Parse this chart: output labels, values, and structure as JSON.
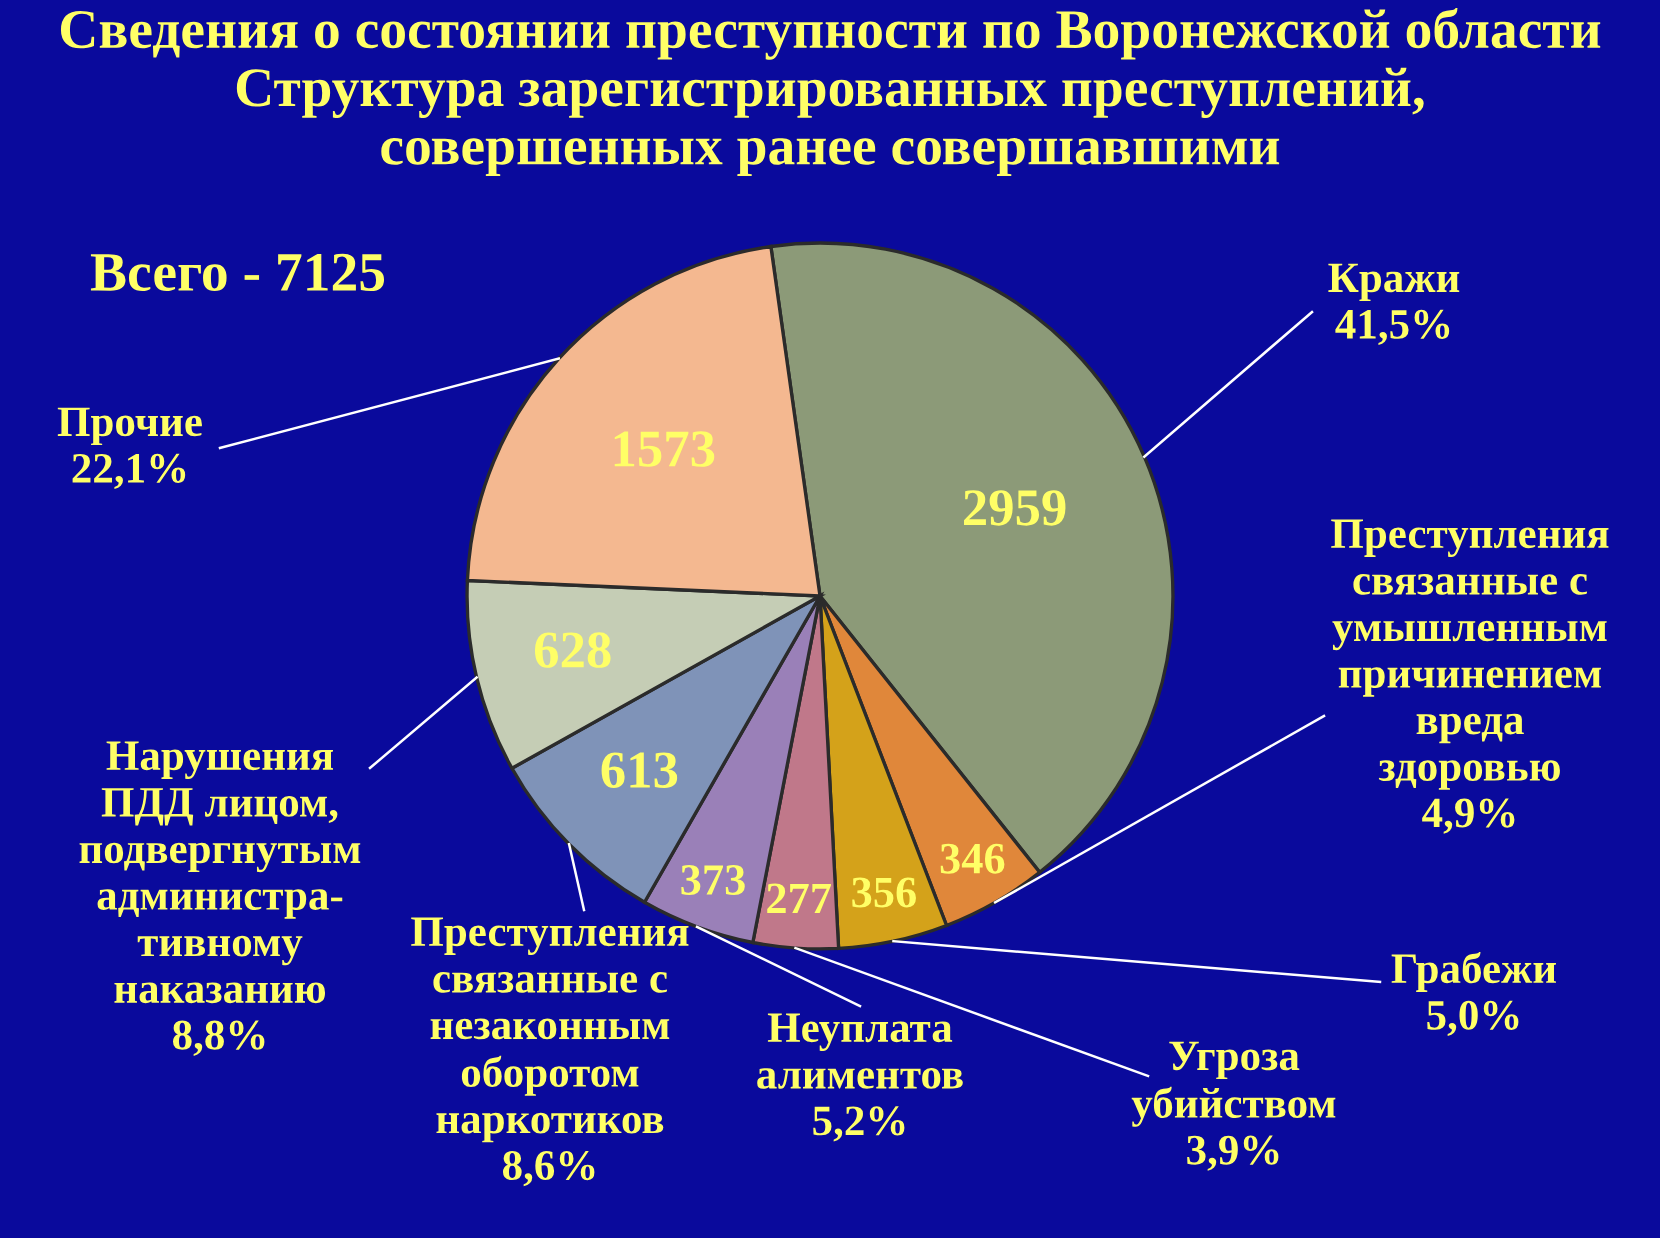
{
  "chart_data": {
    "type": "pie",
    "title": "Сведения о состоянии преступности по Воронежской области\nСтруктура зарегистрированных преступлений,\nсовершенных ранее совершавшими",
    "annotations": [
      "Всего - 7125"
    ],
    "categories": [
      "Кражи\n41,5%",
      "Преступления\nсвязанные с\nумышленным\nпричинением\nвреда\nздоровью\n4,9%",
      "Грабежи\n5,0%",
      "Угроза\nубийством\n3,9%",
      "Неуплата\nалиментов\n5,2%",
      "Преступления\nсвязанные с\nнезаконным\nоборотом\nнаркотиков\n8,6%",
      "Нарушения\nПДД лицом,\nподвергнутым\nадминистра-\nтивному\nнаказанию\n8,8%",
      "Прочие\n22,1%"
    ],
    "values": [
      2959,
      346,
      356,
      277,
      373,
      613,
      628,
      1573
    ],
    "colors": [
      "#8c9a78",
      "#e0873a",
      "#d4a21a",
      "#c0788a",
      "#9a80b8",
      "#7f93b8",
      "#c5cdb5",
      "#f4b890"
    ],
    "data_labels": true
  }
}
